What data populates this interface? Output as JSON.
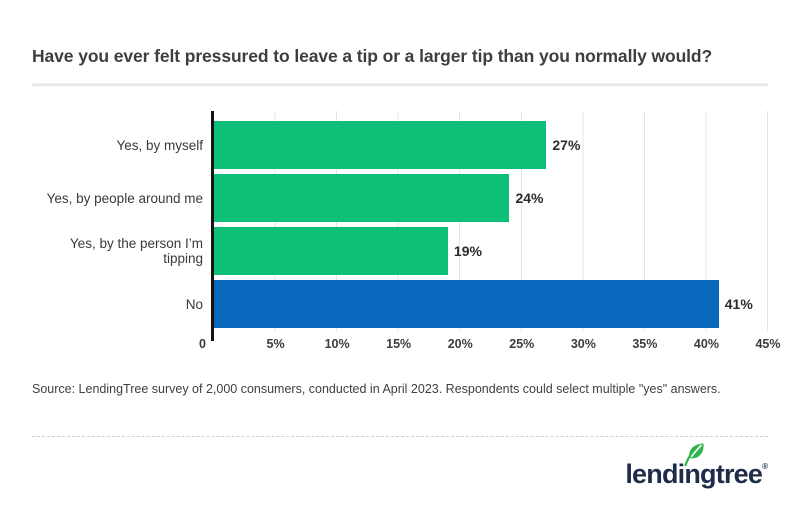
{
  "title": "Have you ever felt pressured to leave a tip or a larger tip than you normally would?",
  "source_note": "Source: LendingTree survey of 2,000 consumers, conducted in April 2023. Respondents could select multiple \"yes\" answers.",
  "logo": {
    "text": "lendingtree",
    "registered_mark": "®",
    "leaf_icon": "leaf-icon",
    "navy": "#1e2c49",
    "leaf_green": "#2fb44b"
  },
  "colors": {
    "bar_green": "#0ebf77",
    "bar_blue": "#0868bb",
    "axis": "#141414",
    "gridline": "#e3e3e3",
    "divider": "#ececec"
  },
  "chart_data": {
    "type": "bar",
    "orientation": "horizontal",
    "title": "Have you ever felt pressured to leave a tip or a larger tip than you normally would?",
    "categories": [
      "Yes, by myself",
      "Yes, by people around me",
      "Yes, by the person I’m tipping",
      "No"
    ],
    "values": [
      27,
      24,
      19,
      41
    ],
    "value_labels": [
      "27%",
      "24%",
      "19%",
      "41%"
    ],
    "bar_colors": [
      "#0ebf77",
      "#0ebf77",
      "#0ebf77",
      "#0868bb"
    ],
    "x_ticks": [
      "0",
      "5%",
      "10%",
      "15%",
      "20%",
      "25%",
      "30%",
      "35%",
      "40%",
      "45%"
    ],
    "xlim": [
      0,
      45
    ],
    "grid": true,
    "legend": "none",
    "xlabel": "",
    "ylabel": ""
  }
}
